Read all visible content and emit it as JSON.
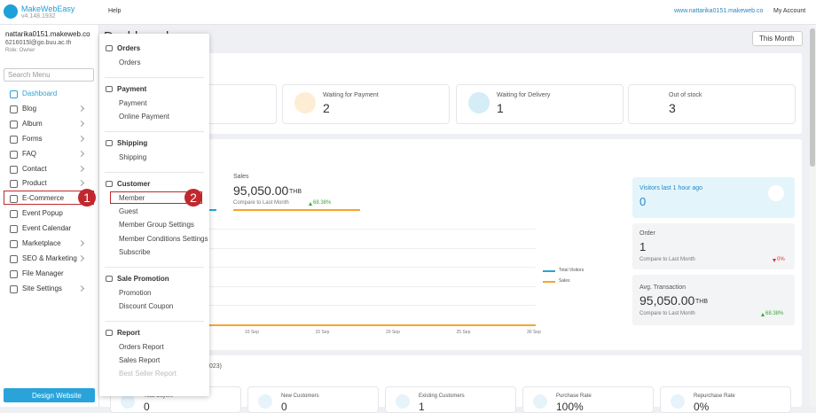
{
  "header": {
    "logo": "MakeWebEasy",
    "version": "v4.148.1932",
    "help": "Help",
    "site_url": "www.nattarika0151.makeweb.co",
    "account": "My Account"
  },
  "sidebar": {
    "site": "nattarika0151.makeweb.co",
    "email": "6216015l@go.buu.ac.th",
    "role": "Role: Owner",
    "search_placeholder": "Search Menu",
    "menu": [
      {
        "label": "Dashboard",
        "submenu": false
      },
      {
        "label": "Blog",
        "submenu": true
      },
      {
        "label": "Album",
        "submenu": true
      },
      {
        "label": "Forms",
        "submenu": true
      },
      {
        "label": "FAQ",
        "submenu": true
      },
      {
        "label": "Contact",
        "submenu": true
      },
      {
        "label": "Product",
        "submenu": true
      },
      {
        "label": "E-Commerce",
        "submenu": true
      },
      {
        "label": "Event Popup",
        "submenu": false
      },
      {
        "label": "Event Calendar",
        "submenu": false
      },
      {
        "label": "Marketplace",
        "submenu": true
      },
      {
        "label": "SEO & Marketing",
        "submenu": true
      },
      {
        "label": "File Manager",
        "submenu": false
      },
      {
        "label": "Site Settings",
        "submenu": true
      }
    ],
    "design_button": "Design Website"
  },
  "dropdown": {
    "sections": [
      {
        "title": "Orders",
        "items": [
          "Orders"
        ]
      },
      {
        "title": "Payment",
        "items": [
          "Payment",
          "Online Payment"
        ]
      },
      {
        "title": "Shipping",
        "items": [
          "Shipping"
        ]
      },
      {
        "title": "Customer",
        "items": [
          "Member",
          "Guest",
          "Member Group Settings",
          "Member Conditions Settings",
          "Subscribe"
        ]
      },
      {
        "title": "Sale Promotion",
        "items": [
          "Promotion",
          "Discount Coupon"
        ]
      },
      {
        "title": "Report",
        "items": [
          "Orders Report",
          "Sales Report",
          "Best Seller Report"
        ]
      }
    ]
  },
  "callouts": [
    "1",
    "2"
  ],
  "main": {
    "title": "Dashboard",
    "period": "This Month",
    "stats": [
      {
        "label": "Waiting for Payment",
        "value": "2"
      },
      {
        "label": "Waiting for Delivery",
        "value": "1"
      },
      {
        "label": "Out of stock",
        "value": "3"
      }
    ],
    "sales": {
      "label": "Sales",
      "value": "95,050.00",
      "currency": "THB",
      "compare": "Compare to Last Month",
      "change": "68.38%"
    },
    "chart": {
      "x_labels": [
        "10 Sep",
        "15 Sep",
        "20 Sep",
        "25 Sep",
        "30 Sep"
      ],
      "legend": [
        "Total Visitors",
        "Sales"
      ]
    },
    "visitors": {
      "label": "Visitors last 1 hour ago",
      "value": "0"
    },
    "order": {
      "label": "Order",
      "value": "1",
      "compare": "Compare to Last Month",
      "change": "0%"
    },
    "avg": {
      "label": "Avg. Transaction",
      "value": "95,050.00",
      "currency": "THB",
      "compare": "Compare to Last Month",
      "change": "68.38%"
    },
    "bottom": {
      "title_fragment": "023)",
      "cards": [
        {
          "label": "Total Buyers",
          "value": "0"
        },
        {
          "label": "New Customers",
          "value": "0"
        },
        {
          "label": "Existing Customers",
          "value": "1"
        },
        {
          "label": "Purchase Rate",
          "value": "100%"
        },
        {
          "label": "Repurchase Rate",
          "value": "0%"
        }
      ]
    }
  }
}
